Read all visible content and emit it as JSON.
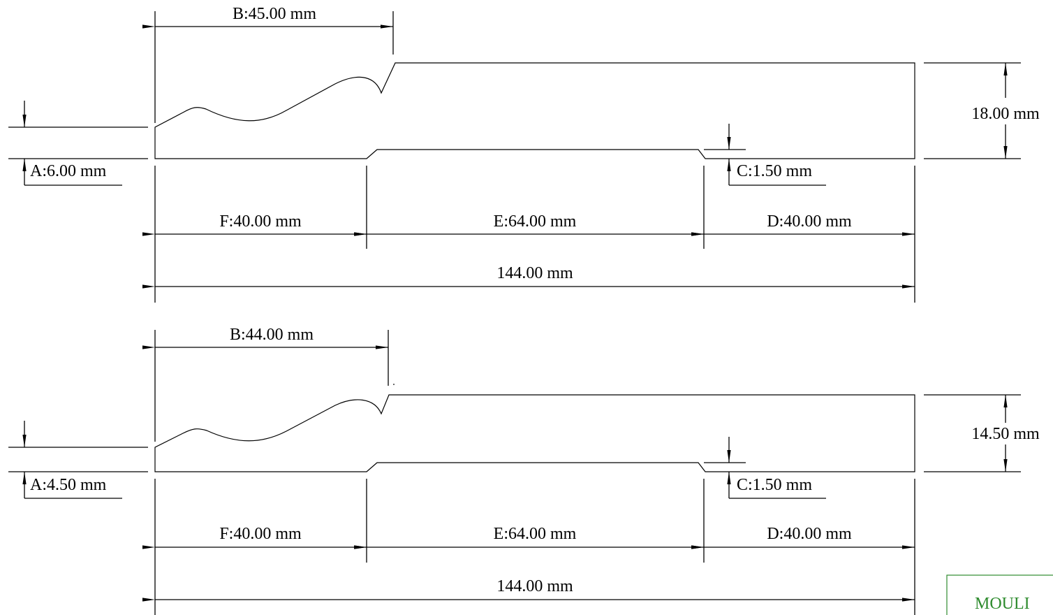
{
  "drawings": [
    {
      "labels": {
        "A": "A:6.00 mm",
        "B": "B:45.00 mm",
        "C": "C:1.50 mm",
        "D": "D:40.00 mm",
        "E": "E:64.00 mm",
        "F": "F:40.00 mm",
        "height": "18.00 mm",
        "total": "144.00 mm"
      }
    },
    {
      "labels": {
        "A": "A:4.50 mm",
        "B": "B:44.00 mm",
        "C": "C:1.50 mm",
        "D": "D:40.00 mm",
        "E": "E:64.00 mm",
        "F": "F:40.00 mm",
        "height": "14.50 mm",
        "total": "144.00 mm"
      }
    }
  ],
  "stamp": {
    "text": "MOULI",
    "color": "#2e8b2e"
  }
}
